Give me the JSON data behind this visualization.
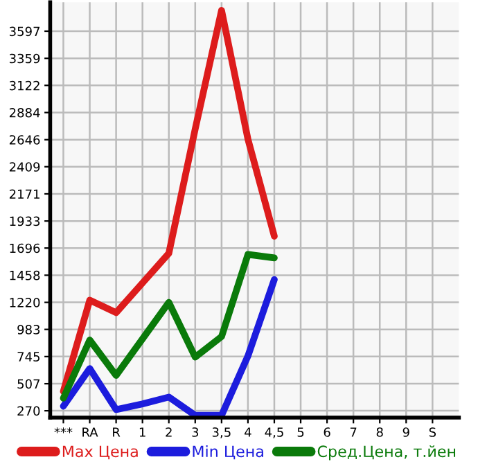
{
  "chart_data": {
    "type": "line",
    "categories": [
      "***",
      "RA",
      "R",
      "1",
      "2",
      "3",
      "3,5",
      "4",
      "4,5",
      "5",
      "6",
      "7",
      "8",
      "9",
      "S"
    ],
    "series": [
      {
        "name": "Max Цена",
        "color": "#dd1c1c",
        "values": [
          440,
          1240,
          1130,
          1390,
          1650,
          2740,
          3780,
          2650,
          1800,
          null,
          null,
          null,
          null,
          null,
          null
        ]
      },
      {
        "name": "Min Цена",
        "color": "#1c1cdd",
        "values": [
          310,
          640,
          280,
          330,
          390,
          230,
          230,
          750,
          1420,
          null,
          null,
          null,
          null,
          null,
          null
        ]
      },
      {
        "name": "Сред.Цена, т.йен",
        "color": "#0a7a0a",
        "values": [
          380,
          890,
          580,
          900,
          1220,
          740,
          920,
          1640,
          1610,
          null,
          null,
          null,
          null,
          null,
          null
        ]
      }
    ],
    "ylim": [
      210,
      3850
    ],
    "yticks": [
      270,
      507,
      745,
      983,
      1220,
      1458,
      1696,
      1933,
      2171,
      2409,
      2646,
      2884,
      3122,
      3359,
      3597
    ],
    "grid": true,
    "legend": "bottom",
    "marker": "none",
    "line_style": "solid"
  }
}
